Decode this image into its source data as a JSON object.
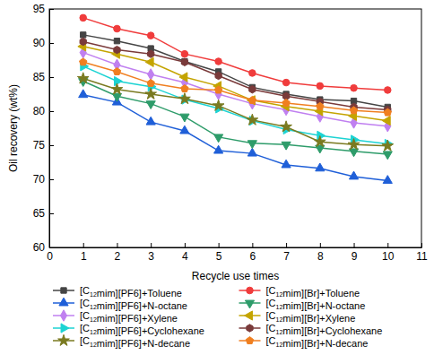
{
  "chart_data": {
    "type": "line",
    "x_label": "Recycle use times",
    "y_label": "Oil recovery (wt%)",
    "x": [
      1,
      2,
      3,
      4,
      5,
      6,
      7,
      8,
      9,
      10
    ],
    "xlim": [
      0,
      11
    ],
    "xticks": [
      0,
      1,
      2,
      3,
      4,
      5,
      6,
      7,
      8,
      9,
      10,
      11
    ],
    "ylim": [
      60,
      95
    ],
    "yticks": [
      60,
      65,
      70,
      75,
      80,
      85,
      90,
      95
    ],
    "grid": false,
    "legend": "bottom",
    "series": [
      {
        "name": "[C12mim][PF6]+Toluene",
        "color": "#454545",
        "marker": "square",
        "values": [
          91.2,
          90.3,
          89.2,
          87.3,
          85.8,
          83.5,
          82.5,
          81.7,
          81.5,
          80.6
        ]
      },
      {
        "name": "[C12mim][Br]+Toluene",
        "color": "#f03c3c",
        "marker": "circle",
        "values": [
          93.7,
          92.1,
          91.1,
          88.4,
          87.3,
          85.6,
          84.2,
          83.7,
          83.4,
          83.1
        ]
      },
      {
        "name": "[C12mim][PF6]+N-octane",
        "color": "#1f5fd8",
        "marker": "triangle-up",
        "values": [
          82.4,
          81.3,
          78.4,
          77.1,
          74.2,
          73.8,
          72.1,
          71.6,
          70.4,
          69.8
        ]
      },
      {
        "name": "[C12mim][Br]+N-octane",
        "color": "#2e9c6a",
        "marker": "triangle-down",
        "values": [
          84.4,
          82.2,
          81.1,
          79.2,
          76.2,
          75.3,
          75.1,
          74.6,
          74.1,
          73.7
        ]
      },
      {
        "name": "[C12mim][PF6]+Xylene",
        "color": "#c080f0",
        "marker": "diamond",
        "values": [
          88.6,
          86.8,
          85.4,
          84.2,
          82.5,
          81.1,
          80.2,
          79.2,
          78.3,
          77.8
        ]
      },
      {
        "name": "[C12mim][Br]+Xylene",
        "color": "#c4a400",
        "marker": "triangle-left",
        "values": [
          89.5,
          88.4,
          87.2,
          85.0,
          83.7,
          81.6,
          80.7,
          80.0,
          79.3,
          78.6
        ]
      },
      {
        "name": "[C12mim][PF6]+Cyclohexane",
        "color": "#1cd3d3",
        "marker": "triangle-right",
        "values": [
          86.6,
          84.4,
          83.6,
          81.7,
          80.4,
          78.6,
          77.3,
          76.4,
          75.8,
          75.2
        ]
      },
      {
        "name": "[C12mim][Br]+Cyclohexane",
        "color": "#7a3a3a",
        "marker": "hexagon",
        "values": [
          90.2,
          89.0,
          88.4,
          87.2,
          85.2,
          83.2,
          82.2,
          81.4,
          80.6,
          80.2
        ]
      },
      {
        "name": "[C12mim][PF6]+N-decane",
        "color": "#7a7a20",
        "marker": "star",
        "values": [
          84.8,
          83.2,
          82.5,
          81.8,
          80.8,
          78.7,
          77.7,
          75.5,
          75.1,
          74.9
        ]
      },
      {
        "name": "[C12mim][Br]+N-decane",
        "color": "#f07f20",
        "marker": "pentagon",
        "values": [
          87.2,
          85.8,
          84.1,
          83.3,
          83.1,
          81.6,
          81.2,
          80.7,
          80.1,
          79.8
        ]
      }
    ]
  }
}
